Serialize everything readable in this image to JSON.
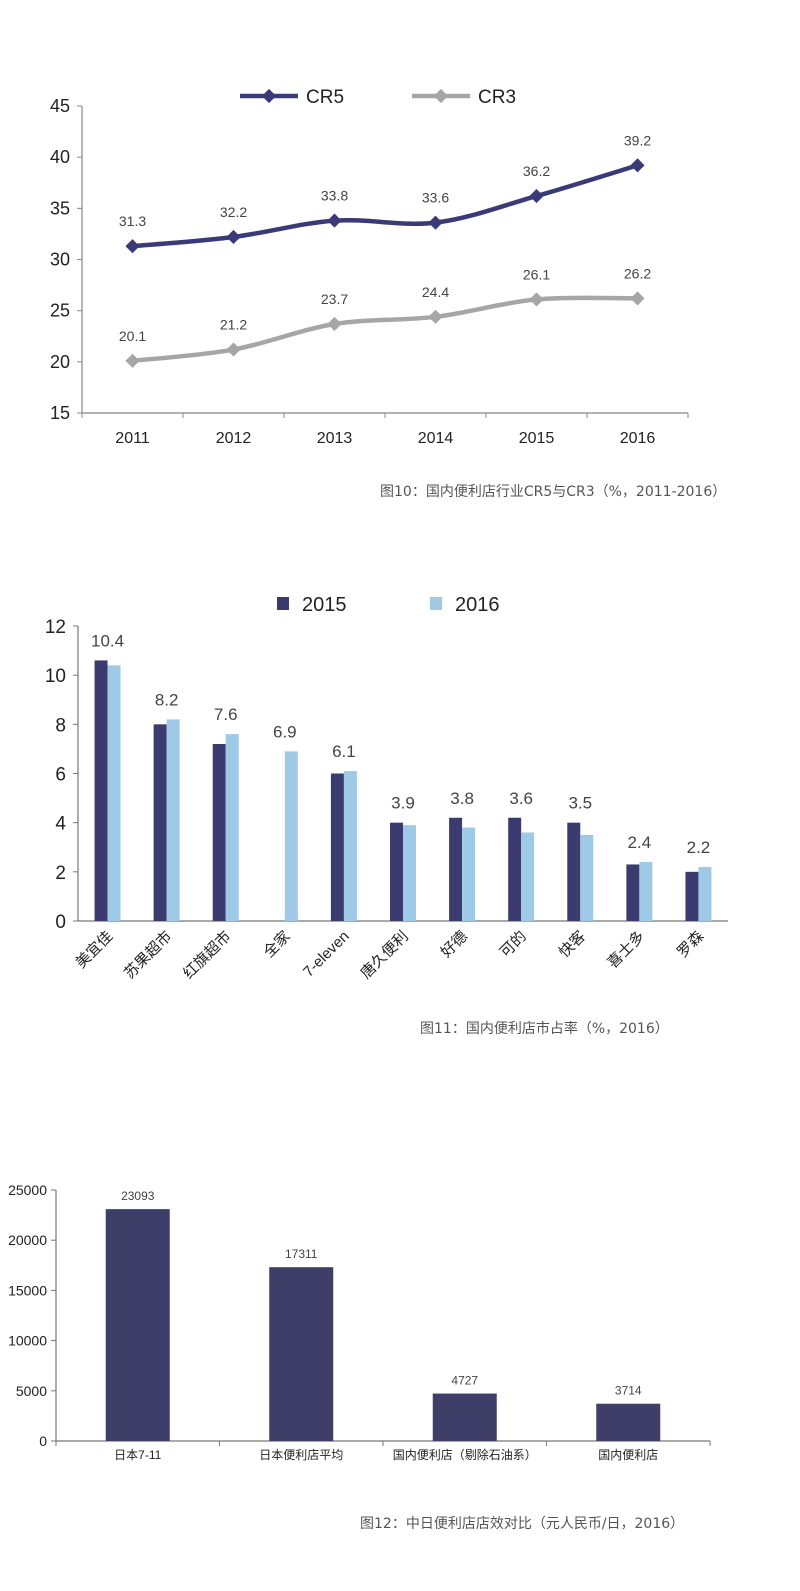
{
  "chart_data": [
    {
      "type": "line",
      "categories": [
        "2011",
        "2012",
        "2013",
        "2014",
        "2015",
        "2016"
      ],
      "series": [
        {
          "name": "CR5",
          "values": [
            31.3,
            32.2,
            33.8,
            33.6,
            36.2,
            39.2
          ],
          "labels": [
            "31.3",
            "32.2",
            "33.8",
            "33.6",
            "36.2",
            "39.2"
          ],
          "color": "#3a3a78"
        },
        {
          "name": "CR3",
          "values": [
            20.1,
            21.2,
            23.7,
            24.4,
            26.1,
            26.2
          ],
          "labels": [
            "20.1",
            "21.2",
            "23.7",
            "24.4",
            "26.1",
            "26.2"
          ],
          "color": "#a6a6a6"
        }
      ],
      "ylim": [
        15,
        45
      ],
      "yticks": [
        "15",
        "20",
        "25",
        "30",
        "35",
        "40",
        "45"
      ],
      "legend": "top-center",
      "caption": "图10：国内便利店行业CR5与CR3（%，2011-2016）"
    },
    {
      "type": "bar",
      "categories": [
        "美宜佳",
        "苏果超市",
        "红旗超市",
        "全家",
        "7-eleven",
        "唐久便利",
        "好德",
        "可的",
        "快客",
        "喜士多",
        "罗森"
      ],
      "series": [
        {
          "name": "2015",
          "values": [
            10.6,
            8.0,
            7.2,
            null,
            6.0,
            4.0,
            4.2,
            4.2,
            4.0,
            2.3,
            2.0
          ],
          "color": "#3b3b70"
        },
        {
          "name": "2016",
          "values": [
            10.4,
            8.2,
            7.6,
            6.9,
            6.1,
            3.9,
            3.8,
            3.6,
            3.5,
            2.4,
            2.2
          ],
          "color": "#9ecae8"
        }
      ],
      "data_labels": [
        "10.4",
        "8.2",
        "7.6",
        "6.9",
        "6.1",
        "3.9",
        "3.8",
        "3.6",
        "3.5",
        "2.4",
        "2.2"
      ],
      "ylim": [
        0,
        12
      ],
      "yticks": [
        "0",
        "2",
        "4",
        "6",
        "8",
        "10",
        "12"
      ],
      "legend": "top-center",
      "caption": "图11：国内便利店市占率（%，2016）"
    },
    {
      "type": "bar",
      "categories": [
        "日本7-11",
        "日本便利店平均",
        "国内便利店（剔除石油系）",
        "国内便利店"
      ],
      "values": [
        23093,
        17311,
        4727,
        3714
      ],
      "labels": [
        "23093",
        "17311",
        "4727",
        "3714"
      ],
      "color": "#3e3e68",
      "ylim": [
        0,
        25000
      ],
      "yticks": [
        "0",
        "5000",
        "10000",
        "15000",
        "20000",
        "25000"
      ],
      "caption": "图12：中日便利店店效对比（元人民币/日，2016）"
    }
  ]
}
